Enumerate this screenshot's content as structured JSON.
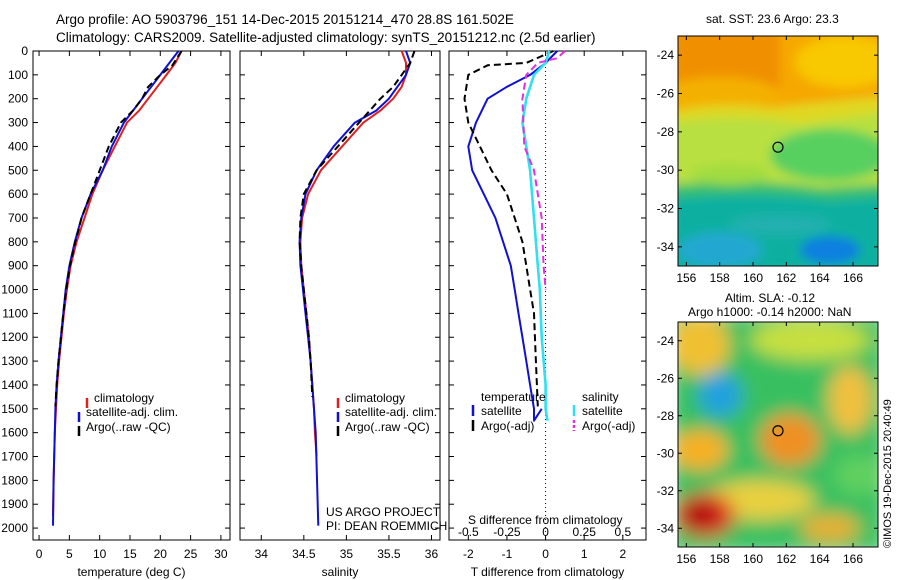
{
  "header": {
    "line1": "Argo profile: AO 5903796_151 14-Dec-2015 20151214_470 28.8S 161.502E",
    "line2": "Climatology: CARS2009. Satellite-adjusted climatology: synTS_20151212.nc (2.5d earlier)"
  },
  "colors": {
    "climatology": "#e02020",
    "satellite": "#1010d0",
    "argo": "#000000",
    "sal_satellite": "#30e0f0",
    "sal_argo": "#e030e0"
  },
  "chart_data": [
    {
      "type": "line",
      "xlabel": "temperature (deg C)",
      "x_ticks": [
        "0",
        "5",
        "10",
        "15",
        "20",
        "25",
        "30"
      ],
      "x_tick_values": [
        0,
        5,
        10,
        15,
        20,
        25,
        30
      ],
      "xlim": [
        -1,
        31.5
      ],
      "ylim": [
        0,
        2050
      ],
      "y_ticks": [
        "0",
        "100",
        "200",
        "300",
        "400",
        "500",
        "600",
        "700",
        "800",
        "900",
        "1000",
        "1100",
        "1200",
        "1300",
        "1400",
        "1500",
        "1600",
        "1700",
        "1800",
        "1900",
        "2000"
      ],
      "y_tick_values": [
        0,
        100,
        200,
        300,
        400,
        500,
        600,
        700,
        800,
        900,
        1000,
        1100,
        1200,
        1300,
        1400,
        1500,
        1600,
        1700,
        1800,
        1900,
        2000
      ],
      "legend": [
        "climatology",
        "satellite-adj. clim.",
        "Argo(..raw -QC)"
      ],
      "series": [
        {
          "name": "climatology",
          "style": "solid",
          "color": "#e02020",
          "x": [
            23.5,
            22.5,
            21,
            19.5,
            18,
            16.5,
            14.5,
            12.5,
            10.5,
            8.8,
            7.5,
            6.2,
            5.2,
            4.6,
            4.1,
            3.7,
            3.3,
            3.0,
            2.8,
            2.6,
            2.5,
            2.4,
            2.3
          ],
          "y": [
            0,
            50,
            100,
            150,
            200,
            250,
            300,
            400,
            500,
            600,
            700,
            800,
            900,
            1000,
            1100,
            1200,
            1300,
            1400,
            1500,
            1600,
            1700,
            1800,
            1950
          ]
        },
        {
          "name": "satellite-adj. clim.",
          "style": "solid",
          "color": "#1010d0",
          "x": [
            23,
            21.5,
            20,
            18.5,
            17,
            15.5,
            14,
            12,
            10.5,
            8.5,
            7,
            5.9,
            5.0,
            4.4,
            4.0,
            3.6,
            3.2,
            2.9,
            2.7,
            2.6,
            2.5,
            2.4,
            2.3
          ],
          "y": [
            0,
            50,
            100,
            150,
            200,
            250,
            300,
            400,
            500,
            600,
            700,
            800,
            900,
            1000,
            1100,
            1200,
            1300,
            1400,
            1500,
            1600,
            1700,
            1800,
            1990
          ]
        },
        {
          "name": "Argo(..raw -QC)",
          "style": "dashed",
          "color": "#000000",
          "x": [
            23.5,
            22,
            20,
            18,
            17,
            15.5,
            13.5,
            11.5,
            10,
            8.5,
            7,
            6,
            5.1,
            4.5,
            4.0,
            3.6,
            3.2,
            2.9,
            2.7
          ],
          "y": [
            0,
            60,
            100,
            150,
            200,
            250,
            300,
            400,
            500,
            600,
            700,
            800,
            900,
            1000,
            1100,
            1200,
            1300,
            1400,
            1490
          ]
        }
      ]
    },
    {
      "type": "line",
      "xlabel": "salinity",
      "x_ticks": [
        "34",
        "34.5",
        "35",
        "35.5",
        "36"
      ],
      "x_tick_values": [
        34,
        34.5,
        35,
        35.5,
        36
      ],
      "xlim": [
        33.75,
        36.1
      ],
      "ylim": [
        0,
        2050
      ],
      "legend": [
        "climatology",
        "satellite-adj. clim.",
        "Argo(..raw -QC)"
      ],
      "annotation": [
        "US ARGO PROJECT",
        "PI: DEAN ROEMMICH"
      ],
      "series": [
        {
          "name": "climatology",
          "style": "solid",
          "color": "#e02020",
          "x": [
            35.65,
            35.7,
            35.7,
            35.65,
            35.55,
            35.4,
            35.2,
            34.95,
            34.7,
            34.55,
            34.48,
            34.46,
            34.47,
            34.5,
            34.53,
            34.56,
            34.58,
            34.6,
            34.62,
            34.63,
            34.65
          ],
          "y": [
            0,
            50,
            100,
            150,
            200,
            250,
            300,
            400,
            500,
            600,
            700,
            800,
            900,
            1000,
            1100,
            1200,
            1300,
            1400,
            1500,
            1600,
            1700
          ]
        },
        {
          "name": "satellite-adj. clim.",
          "style": "solid",
          "color": "#1010d0",
          "x": [
            35.7,
            35.75,
            35.7,
            35.6,
            35.5,
            35.35,
            35.1,
            34.85,
            34.65,
            34.52,
            34.47,
            34.45,
            34.46,
            34.49,
            34.52,
            34.55,
            34.58,
            34.6,
            34.62,
            34.64,
            34.67
          ],
          "y": [
            0,
            50,
            100,
            150,
            200,
            250,
            300,
            400,
            500,
            600,
            700,
            800,
            900,
            1000,
            1100,
            1200,
            1300,
            1400,
            1500,
            1600,
            1990
          ]
        },
        {
          "name": "Argo(..raw -QC)",
          "style": "dashed",
          "color": "#000000",
          "x": [
            35.8,
            35.75,
            35.65,
            35.55,
            35.4,
            35.15,
            34.9,
            34.65,
            34.5,
            34.46,
            34.45,
            34.47,
            34.5,
            34.53,
            34.56,
            34.58,
            34.6
          ],
          "y": [
            0,
            50,
            100,
            150,
            200,
            300,
            400,
            500,
            600,
            700,
            800,
            900,
            1000,
            1100,
            1200,
            1300,
            1450
          ]
        }
      ]
    },
    {
      "type": "line",
      "xlabel": "T difference from climatology",
      "xlabel_top": "S difference from climatology",
      "x_ticks": [
        "-2",
        "-1",
        "0",
        "1",
        "2"
      ],
      "x_tick_values": [
        -2,
        -1,
        0,
        1,
        2
      ],
      "x_ticks_top": [
        "-0.5",
        "-0.25",
        "0",
        "0.25",
        "0.5"
      ],
      "xlim": [
        -2.5,
        2.6
      ],
      "ylim": [
        0,
        2050
      ],
      "legend_temperature_title": "temperature",
      "legend_salinity_title": "salinity",
      "legend": [
        "satellite",
        "Argo(-adj)",
        "satellite",
        "Argo(-adj)"
      ],
      "series": [
        {
          "name": "satellite",
          "group": "temperature",
          "style": "solid",
          "color": "#1010d0",
          "x": [
            0.3,
            0,
            -0.4,
            -1.0,
            -1.5,
            -1.8,
            -2.0,
            -1.9,
            -1.6,
            -1.3,
            -1.1,
            -0.9,
            -0.8,
            -0.7,
            -0.6,
            -0.5,
            -0.4,
            -0.3,
            -0.3,
            -0.1
          ],
          "y": [
            0,
            50,
            100,
            150,
            200,
            300,
            400,
            500,
            600,
            700,
            800,
            900,
            1000,
            1100,
            1200,
            1300,
            1400,
            1500,
            1550,
            1500
          ]
        },
        {
          "name": "Argo(-adj)",
          "group": "temperature",
          "style": "dashed",
          "color": "#000000",
          "x": [
            0.2,
            -0.5,
            -1.5,
            -2.0,
            -2.1,
            -2.0,
            -1.7,
            -1.4,
            -1.0,
            -0.8,
            -0.6,
            -0.5,
            -0.4,
            -0.3,
            -0.25,
            -0.2
          ],
          "y": [
            0,
            50,
            60,
            100,
            200,
            300,
            400,
            500,
            600,
            700,
            800,
            900,
            1000,
            1100,
            1300,
            1490
          ]
        },
        {
          "name": "satellite",
          "group": "salinity",
          "style": "solid",
          "color": "#30e0f0",
          "x": [
            0.1,
            0.0,
            -0.3,
            -0.5,
            -0.6,
            -0.5,
            -0.4,
            -0.3,
            -0.2,
            -0.15,
            -0.1,
            0.0,
            0.0,
            0.05
          ],
          "y": [
            0,
            50,
            100,
            200,
            300,
            400,
            500,
            700,
            900,
            1000,
            1200,
            1400,
            1500,
            1550
          ]
        },
        {
          "name": "Argo(-adj)",
          "group": "salinity",
          "style": "dashed",
          "color": "#e030e0",
          "x": [
            0.5,
            0.3,
            -0.2,
            -0.5,
            -0.6,
            -0.55,
            -0.3,
            -0.1,
            -0.05,
            0.0
          ],
          "y": [
            0,
            30,
            50,
            100,
            200,
            400,
            500,
            700,
            900,
            1000
          ]
        }
      ]
    },
    {
      "type": "heatmap",
      "title": "sat. SST: 23.6 Argo: 23.3",
      "x_ticks": [
        "156",
        "158",
        "160",
        "162",
        "164",
        "166"
      ],
      "x_tick_values": [
        156,
        158,
        160,
        162,
        164,
        166
      ],
      "y_ticks": [
        "-24",
        "-26",
        "-28",
        "-30",
        "-32",
        "-34"
      ],
      "y_tick_values": [
        -24,
        -26,
        -28,
        -30,
        -32,
        -34
      ],
      "xlim": [
        155.5,
        167.5
      ],
      "ylim": [
        -35,
        -23
      ],
      "marker": {
        "lon": 161.5,
        "lat": -28.8
      }
    },
    {
      "type": "heatmap",
      "title": [
        "Altim. SLA: -0.12",
        "Argo h1000: -0.14 h2000: NaN"
      ],
      "x_ticks": [
        "156",
        "158",
        "160",
        "162",
        "164",
        "166"
      ],
      "x_tick_values": [
        156,
        158,
        160,
        162,
        164,
        166
      ],
      "y_ticks": [
        "-24",
        "-26",
        "-28",
        "-30",
        "-32",
        "-34"
      ],
      "y_tick_values": [
        -24,
        -26,
        -28,
        -30,
        -32,
        -34
      ],
      "xlim": [
        155.5,
        167.5
      ],
      "ylim": [
        -35,
        -23
      ],
      "marker": {
        "lon": 161.5,
        "lat": -28.8
      }
    }
  ],
  "side_label": "©IMOS 19-Dec-2015 20:40:49"
}
